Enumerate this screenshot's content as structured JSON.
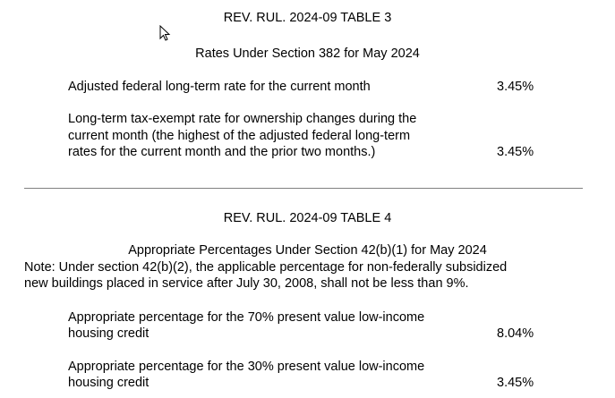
{
  "table3": {
    "title": "REV. RUL. 2024-09 TABLE 3",
    "subtitle": "Rates Under Section 382 for May 2024",
    "rows": [
      {
        "label_lines": [
          "Adjusted federal long-term rate for the current month"
        ],
        "value": "3.45%"
      },
      {
        "label_lines": [
          "Long-term tax-exempt rate for ownership changes during the",
          "current month (the highest of the adjusted federal long-term",
          "rates for the current month and the prior two months.)"
        ],
        "value": "3.45%"
      }
    ]
  },
  "table4": {
    "title": "REV. RUL. 2024-09 TABLE 4",
    "subtitle": "Appropriate Percentages Under Section 42(b)(1) for May 2024",
    "note_lines": [
      "Note: Under section 42(b)(2), the applicable percentage for non-federally subsidized",
      "new buildings placed in service after July 30, 2008, shall not be less than 9%."
    ],
    "rows": [
      {
        "label_lines": [
          "Appropriate percentage for the 70% present value low-income",
          "housing credit"
        ],
        "value": "8.04%"
      },
      {
        "label_lines": [
          "Appropriate percentage for the 30% present value low-income",
          "housing credit"
        ],
        "value": "3.45%"
      }
    ]
  },
  "icons": {
    "cursor": "mouse-pointer-icon"
  }
}
